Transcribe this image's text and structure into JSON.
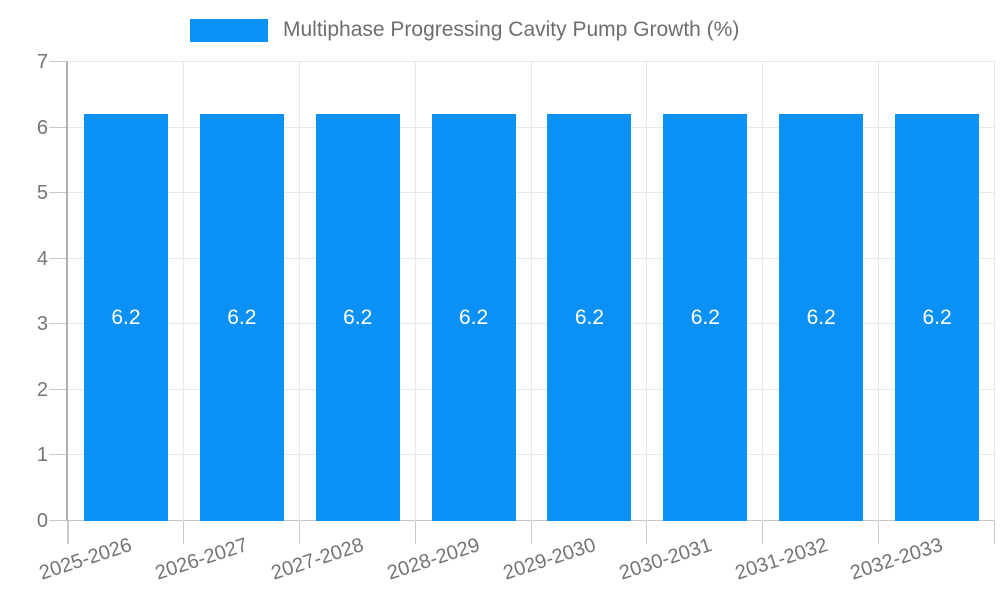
{
  "chart_data": {
    "type": "bar",
    "title": "Multiphase Progressing Cavity Pump Growth (%)",
    "categories": [
      "2025-2026",
      "2026-2027",
      "2027-2028",
      "2028-2029",
      "2029-2030",
      "2030-2031",
      "2031-2032",
      "2032-2033"
    ],
    "values": [
      6.2,
      6.2,
      6.2,
      6.2,
      6.2,
      6.2,
      6.2,
      6.2
    ],
    "value_labels": [
      "6.2",
      "6.2",
      "6.2",
      "6.2",
      "6.2",
      "6.2",
      "6.2",
      "6.2"
    ],
    "xlabel": "",
    "ylabel": "",
    "ylim": [
      0,
      7
    ],
    "yticks": [
      0,
      1,
      2,
      3,
      4,
      5,
      6,
      7
    ],
    "ytick_labels": [
      "0",
      "1",
      "2",
      "3",
      "4",
      "5",
      "6",
      "7"
    ],
    "grid": "on",
    "legend_position": "top-center",
    "colors": {
      "bar": "#0b90f5",
      "grid": "#e8e8e8",
      "axis": "#b0b0b0",
      "baseline": "#c6c6c6",
      "tick": "#c9c9c9",
      "text": "#757575",
      "value_text": "#ffffff",
      "legend_text": "#6e6e6e",
      "background": "#ffffff"
    }
  }
}
